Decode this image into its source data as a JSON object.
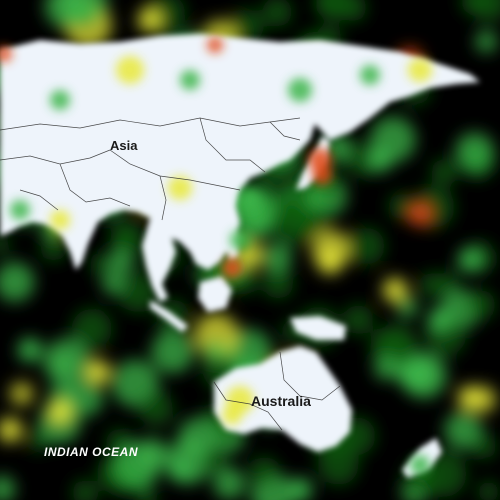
{
  "labels": {
    "continent_asia": "Asia",
    "continent_australia": "Australia",
    "ocean_indian": "INDIAN OCEAN"
  },
  "colors": {
    "background": "#000000",
    "land_low": "#eef4fb",
    "heat_low": "#0a5a0a",
    "heat_mid": "#3cb54a",
    "heat_high": "#e9e93a",
    "heat_peak": "#e24a1a",
    "border": "#2b2b2b"
  }
}
